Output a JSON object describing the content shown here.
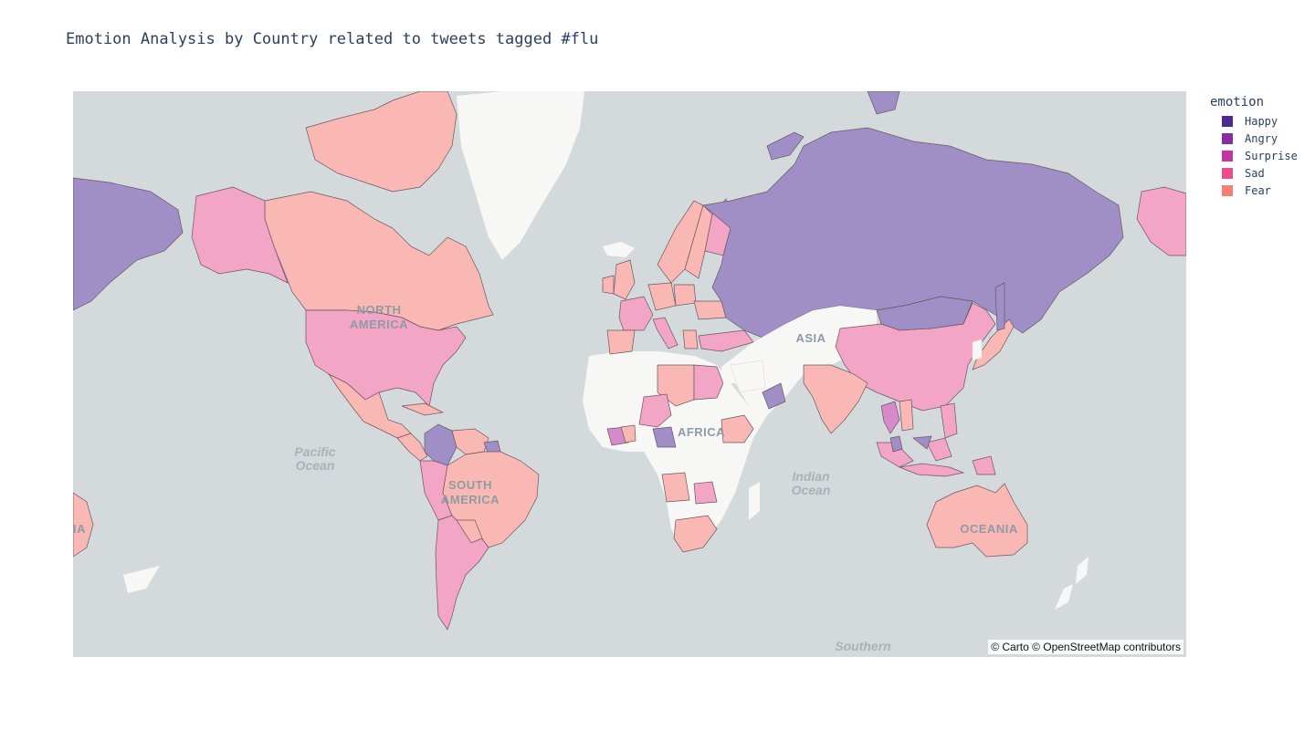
{
  "title": "Emotion Analysis by Country related to tweets tagged #flu",
  "legend": {
    "title": "emotion",
    "items": [
      {
        "label": "Happy",
        "color": "#4b2991"
      },
      {
        "label": "Angry",
        "color": "#872ca2"
      },
      {
        "label": "Surprise",
        "color": "#c0369d"
      },
      {
        "label": "Sad",
        "color": "#ea4f88"
      },
      {
        "label": "Fear",
        "color": "#f47f73"
      }
    ]
  },
  "fills": {
    "Happy": "#a08fc6",
    "Angry": "#c49ad4",
    "Surprise": "#d68ac9",
    "Sad": "#f2a5c5",
    "Fear": "#f9b8b4",
    "land": "#f7f7f6",
    "ocean": "#d4dadc"
  },
  "map_labels": {
    "north_america": [
      "NORTH",
      "AMERICA"
    ],
    "south_america": [
      "SOUTH",
      "AMERICA"
    ],
    "asia": "ASIA",
    "africa": "AFRICA",
    "oceania": "OCEANIA",
    "edge_left": "IA",
    "pacific": [
      "Pacific",
      "Ocean"
    ],
    "indian": [
      "Indian",
      "Ocean"
    ],
    "southern": "Southern"
  },
  "attribution": "© Carto © OpenStreetMap contributors",
  "countries": [
    {
      "name": "Canada",
      "emotion": "Fear"
    },
    {
      "name": "United States",
      "emotion": "Sad"
    },
    {
      "name": "Alaska",
      "emotion": "Sad"
    },
    {
      "name": "Mexico",
      "emotion": "Fear"
    },
    {
      "name": "Colombia",
      "emotion": "Happy"
    },
    {
      "name": "Brazil",
      "emotion": "Fear"
    },
    {
      "name": "Argentina",
      "emotion": "Sad"
    },
    {
      "name": "Chile",
      "emotion": "Sad"
    },
    {
      "name": "Peru",
      "emotion": "Sad"
    },
    {
      "name": "Russia",
      "emotion": "Happy"
    },
    {
      "name": "China",
      "emotion": "Sad"
    },
    {
      "name": "Mongolia",
      "emotion": "Happy"
    },
    {
      "name": "India",
      "emotion": "Fear"
    },
    {
      "name": "Australia",
      "emotion": "Fear"
    },
    {
      "name": "Indonesia",
      "emotion": "Sad"
    },
    {
      "name": "Japan",
      "emotion": "Fear"
    },
    {
      "name": "Egypt",
      "emotion": "Sad"
    },
    {
      "name": "Libya",
      "emotion": "Fear"
    },
    {
      "name": "Ethiopia",
      "emotion": "Fear"
    },
    {
      "name": "South Africa",
      "emotion": "Fear"
    },
    {
      "name": "Nigeria",
      "emotion": "Sad"
    },
    {
      "name": "Cameroon",
      "emotion": "Happy"
    },
    {
      "name": "Ghana",
      "emotion": "Surprise"
    },
    {
      "name": "Norway",
      "emotion": "Fear"
    },
    {
      "name": "Finland",
      "emotion": "Sad"
    },
    {
      "name": "United Kingdom",
      "emotion": "Fear"
    },
    {
      "name": "France",
      "emotion": "Sad"
    },
    {
      "name": "Spain",
      "emotion": "Fear"
    },
    {
      "name": "Turkey",
      "emotion": "Sad"
    },
    {
      "name": "Oman",
      "emotion": "Happy"
    },
    {
      "name": "Thailand",
      "emotion": "Surprise"
    },
    {
      "name": "Greenland",
      "emotion": "none"
    }
  ]
}
